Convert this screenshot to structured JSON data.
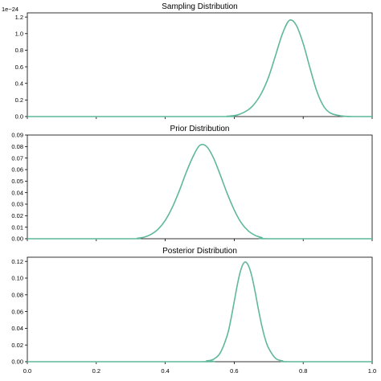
{
  "style": {
    "line_color": "#5fb89a"
  },
  "chart_data": [
    {
      "type": "line",
      "title": "Sampling Distribution",
      "xlabel": "",
      "ylabel": "",
      "xlim": [
        0.0,
        1.0
      ],
      "ylim": [
        0.0,
        1.25
      ],
      "y_offset_label": "1e−24",
      "y_ticks": [
        "0.0",
        "0.2",
        "0.4",
        "0.6",
        "0.8",
        "1.0",
        "1.2"
      ],
      "x_ticks": [],
      "x": [
        0.0,
        0.55,
        0.58,
        0.61,
        0.64,
        0.66,
        0.68,
        0.7,
        0.72,
        0.74,
        0.76,
        0.78,
        0.8,
        0.82,
        0.84,
        0.86,
        0.88,
        0.91,
        0.94,
        1.0
      ],
      "y": [
        0.0,
        0.0,
        0.004,
        0.02,
        0.08,
        0.16,
        0.29,
        0.48,
        0.74,
        1.0,
        1.16,
        1.1,
        0.88,
        0.58,
        0.3,
        0.12,
        0.04,
        0.008,
        0.0,
        0.0
      ]
    },
    {
      "type": "line",
      "title": "Prior Distribution",
      "xlabel": "",
      "ylabel": "",
      "xlim": [
        0.0,
        1.0
      ],
      "ylim": [
        0.0,
        0.09
      ],
      "y_ticks": [
        "0.00",
        "0.01",
        "0.02",
        "0.03",
        "0.04",
        "0.05",
        "0.06",
        "0.07",
        "0.08",
        "0.09"
      ],
      "x_ticks": [],
      "x": [
        0.0,
        0.3,
        0.32,
        0.34,
        0.36,
        0.38,
        0.4,
        0.42,
        0.44,
        0.46,
        0.48,
        0.5,
        0.52,
        0.54,
        0.56,
        0.58,
        0.6,
        0.62,
        0.64,
        0.66,
        0.68,
        0.7,
        1.0
      ],
      "y": [
        0.0,
        0.0,
        0.0005,
        0.0015,
        0.004,
        0.0085,
        0.016,
        0.027,
        0.041,
        0.057,
        0.071,
        0.081,
        0.08,
        0.07,
        0.055,
        0.039,
        0.025,
        0.014,
        0.007,
        0.003,
        0.001,
        0.0,
        0.0
      ]
    },
    {
      "type": "line",
      "title": "Posterior Distribution",
      "xlabel": "",
      "ylabel": "",
      "xlim": [
        0.0,
        1.0
      ],
      "ylim": [
        0.0,
        0.125
      ],
      "y_ticks": [
        "0.00",
        "0.02",
        "0.04",
        "0.06",
        "0.08",
        "0.10",
        "0.12"
      ],
      "x_ticks": [
        "0.0",
        "0.2",
        "0.4",
        "0.6",
        "0.8",
        "1.0"
      ],
      "x": [
        0.0,
        0.5,
        0.52,
        0.54,
        0.56,
        0.58,
        0.59,
        0.6,
        0.61,
        0.62,
        0.63,
        0.64,
        0.65,
        0.66,
        0.67,
        0.68,
        0.69,
        0.7,
        0.72,
        0.74,
        0.76,
        1.0
      ],
      "y": [
        0.0,
        0.0,
        0.001,
        0.003,
        0.011,
        0.032,
        0.05,
        0.072,
        0.094,
        0.111,
        0.119,
        0.116,
        0.104,
        0.085,
        0.063,
        0.043,
        0.027,
        0.016,
        0.004,
        0.001,
        0.0,
        0.0
      ]
    }
  ]
}
